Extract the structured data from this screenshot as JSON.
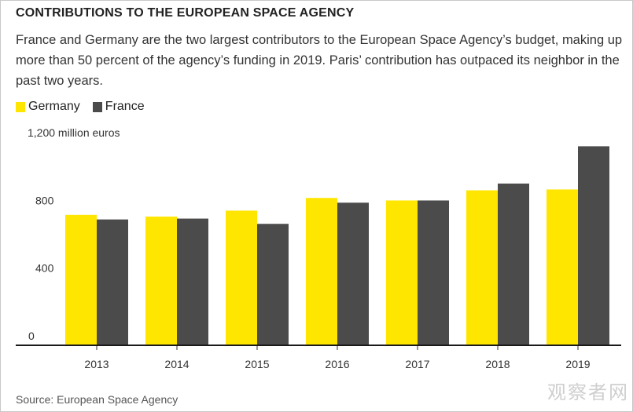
{
  "header": {
    "title": "CONTRIBUTIONS TO THE EUROPEAN SPACE AGENCY",
    "subtitle": "France and Germany are the two largest contributors to the European Space Agency’s budget, making up more than 50 percent of the agency’s funding in 2019. Paris’ contribution has outpaced its neighbor in the past two years."
  },
  "legend": {
    "items": [
      {
        "label": "Germany",
        "color": "#ffe600"
      },
      {
        "label": "France",
        "color": "#4b4b4b"
      }
    ]
  },
  "source": "Source: European Space Agency",
  "watermark": "观察者网",
  "chart_data": {
    "type": "bar",
    "title": "CONTRIBUTIONS TO THE EUROPEAN SPACE AGENCY",
    "xlabel": "",
    "ylabel": "million euros",
    "ylim": [
      0,
      1200
    ],
    "yticks": [
      0,
      400,
      800,
      1200
    ],
    "ytick_labels": [
      "0",
      "400",
      "800",
      "1,200 million euros"
    ],
    "categories": [
      "2013",
      "2014",
      "2015",
      "2016",
      "2017",
      "2018",
      "2019"
    ],
    "series": [
      {
        "name": "Germany",
        "color": "#ffe600",
        "values": [
          770,
          760,
          795,
          870,
          855,
          915,
          920
        ]
      },
      {
        "name": "France",
        "color": "#4b4b4b",
        "values": [
          743,
          748,
          717,
          842,
          855,
          955,
          1175
        ]
      }
    ],
    "grid": false,
    "legend_position": "top-left"
  }
}
